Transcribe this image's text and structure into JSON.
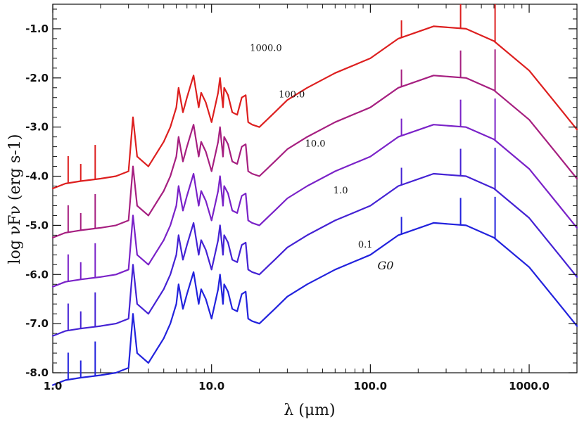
{
  "chart_data": {
    "type": "line",
    "title": "",
    "xlabel": "λ (μm)",
    "ylabel": "log νFν (erg s-1)",
    "xscale": "log",
    "xlim": [
      1.0,
      2000.0
    ],
    "ylim": [
      -8.0,
      -0.5
    ],
    "x_ticks": [
      {
        "value": 1.0,
        "label": "1.0"
      },
      {
        "value": 10.0,
        "label": "10.0"
      },
      {
        "value": 100.0,
        "label": "100.0"
      },
      {
        "value": 1000.0,
        "label": "1000.0"
      }
    ],
    "y_ticks": [
      {
        "value": -1.0,
        "label": "-1.0"
      },
      {
        "value": -2.0,
        "label": "-2.0"
      },
      {
        "value": -3.0,
        "label": "-3.0"
      },
      {
        "value": -4.0,
        "label": "-4.0"
      },
      {
        "value": -5.0,
        "label": "-5.0"
      },
      {
        "value": -6.0,
        "label": "-6.0"
      },
      {
        "value": -7.0,
        "label": "-7.0"
      },
      {
        "value": -8.0,
        "label": "-8.0"
      }
    ],
    "legend_title": "G0",
    "series_base": {
      "x": [
        1.0,
        1.2,
        1.5,
        2.0,
        2.5,
        3.0,
        3.2,
        3.4,
        4.0,
        5.0,
        5.5,
        6.0,
        6.2,
        6.6,
        7.0,
        7.7,
        8.3,
        8.6,
        9.2,
        10.0,
        11.0,
        11.3,
        11.8,
        12.0,
        12.7,
        13.5,
        14.5,
        15.5,
        16.4,
        17.0,
        18.0,
        20.0,
        25.0,
        30.0,
        40.0,
        60.0,
        100.0,
        150.0,
        250.0,
        400.0,
        600.0,
        1000.0,
        1500.0,
        2000.0
      ],
      "y": [
        -8.25,
        -8.15,
        -8.1,
        -8.05,
        -8.0,
        -7.9,
        -6.8,
        -7.6,
        -7.8,
        -7.3,
        -7.0,
        -6.6,
        -6.2,
        -6.7,
        -6.4,
        -5.95,
        -6.6,
        -6.3,
        -6.5,
        -6.9,
        -6.3,
        -6.0,
        -6.6,
        -6.2,
        -6.35,
        -6.7,
        -6.75,
        -6.4,
        -6.35,
        -6.9,
        -6.95,
        -7.0,
        -6.7,
        -6.45,
        -6.2,
        -5.9,
        -5.6,
        -5.2,
        -4.95,
        -5.0,
        -5.25,
        -5.85,
        -6.55,
        -7.05
      ]
    },
    "series": [
      {
        "name": "0.1",
        "color": "#2222dd",
        "offset": 0.0
      },
      {
        "name": "1.0",
        "color": "#4422d4",
        "offset": 1.0
      },
      {
        "name": "10.0",
        "color": "#7a22c8",
        "offset": 2.0
      },
      {
        "name": "100.0",
        "color": "#a61f80",
        "offset": 3.0
      },
      {
        "name": "1000.0",
        "color": "#dd1f1f",
        "offset": 4.0
      }
    ],
    "annotations": [
      {
        "text": "1000.0",
        "x": 22.0,
        "y": -1.45,
        "kind": "series-label"
      },
      {
        "text": "100.0",
        "x": 32.0,
        "y": -2.4,
        "kind": "series-label"
      },
      {
        "text": "10.0",
        "x": 45.0,
        "y": -3.4,
        "kind": "series-label"
      },
      {
        "text": "1.0",
        "x": 65.0,
        "y": -4.35,
        "kind": "series-label"
      },
      {
        "text": "0.1",
        "x": 93.0,
        "y": -5.45,
        "kind": "series-label"
      }
    ]
  }
}
